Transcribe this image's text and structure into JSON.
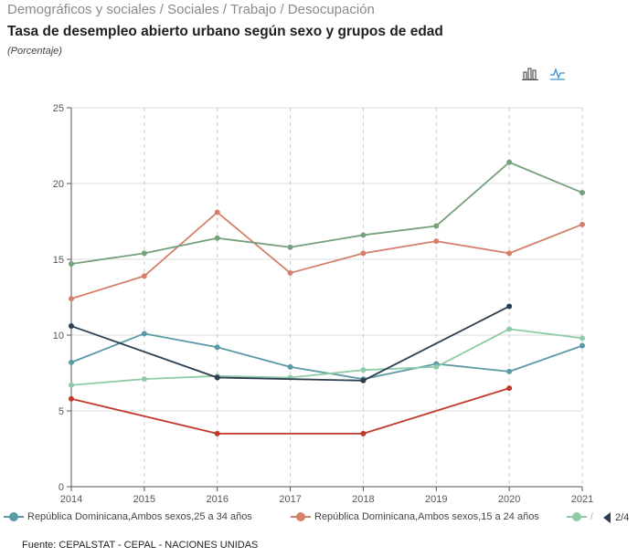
{
  "header": {
    "breadcrumb": "Demográficos y sociales / Sociales / Trabajo / Desocupación",
    "title": "Tasa de desempleo abierto urbano según sexo y grupos de edad",
    "subtitle": "(Porcentaje)"
  },
  "toolbar": {
    "bar_icon": "bar-chart-icon",
    "line_icon": "line-chart-icon"
  },
  "chart_data": {
    "type": "line",
    "x": [
      2014,
      2015,
      2016,
      2017,
      2018,
      2019,
      2020,
      2021
    ],
    "ylim": [
      0,
      25
    ],
    "yticks": [
      0,
      5,
      10,
      15,
      20,
      25
    ],
    "grid": true,
    "legend_position": "bottom",
    "series": [
      {
        "name": "República Dominicana,Ambos sexos,25 a 34 años",
        "color": "#5a9aa5",
        "values": [
          8.2,
          10.1,
          9.2,
          7.9,
          7.1,
          8.1,
          7.6,
          9.3
        ]
      },
      {
        "name": "República Dominicana,Ambos sexos,15 a 24 años",
        "color": "#d4806a",
        "values": [
          12.4,
          13.9,
          18.1,
          14.1,
          15.4,
          16.2,
          15.4,
          17.3
        ]
      },
      {
        "color": "#8fcba8",
        "values": [
          6.7,
          7.1,
          7.3,
          7.2,
          7.7,
          7.9,
          10.4,
          9.8
        ]
      },
      {
        "color": "#76a07b",
        "values": [
          14.7,
          15.4,
          16.4,
          15.8,
          16.6,
          17.2,
          21.4,
          19.4
        ]
      },
      {
        "color": "#2c3e50",
        "values": [
          10.6,
          null,
          7.2,
          null,
          7.0,
          null,
          11.9,
          null
        ]
      },
      {
        "color": "#c0392b",
        "values": [
          5.8,
          null,
          3.5,
          null,
          3.5,
          null,
          6.5,
          null
        ]
      }
    ]
  },
  "legend": {
    "items": [
      {
        "label": "República Dominicana,Ambos sexos,25 a 34 años",
        "color": "#5a9aa5"
      },
      {
        "label": "República Dominicana,Ambos sexos,15 a 24 años",
        "color": "#d4806a"
      },
      {
        "label": "/",
        "color": "#8fcba8"
      }
    ],
    "page": "2/4"
  },
  "footer": {
    "source": "Fuente: CEPALSTAT - CEPAL - NACIONES UNIDAS"
  }
}
